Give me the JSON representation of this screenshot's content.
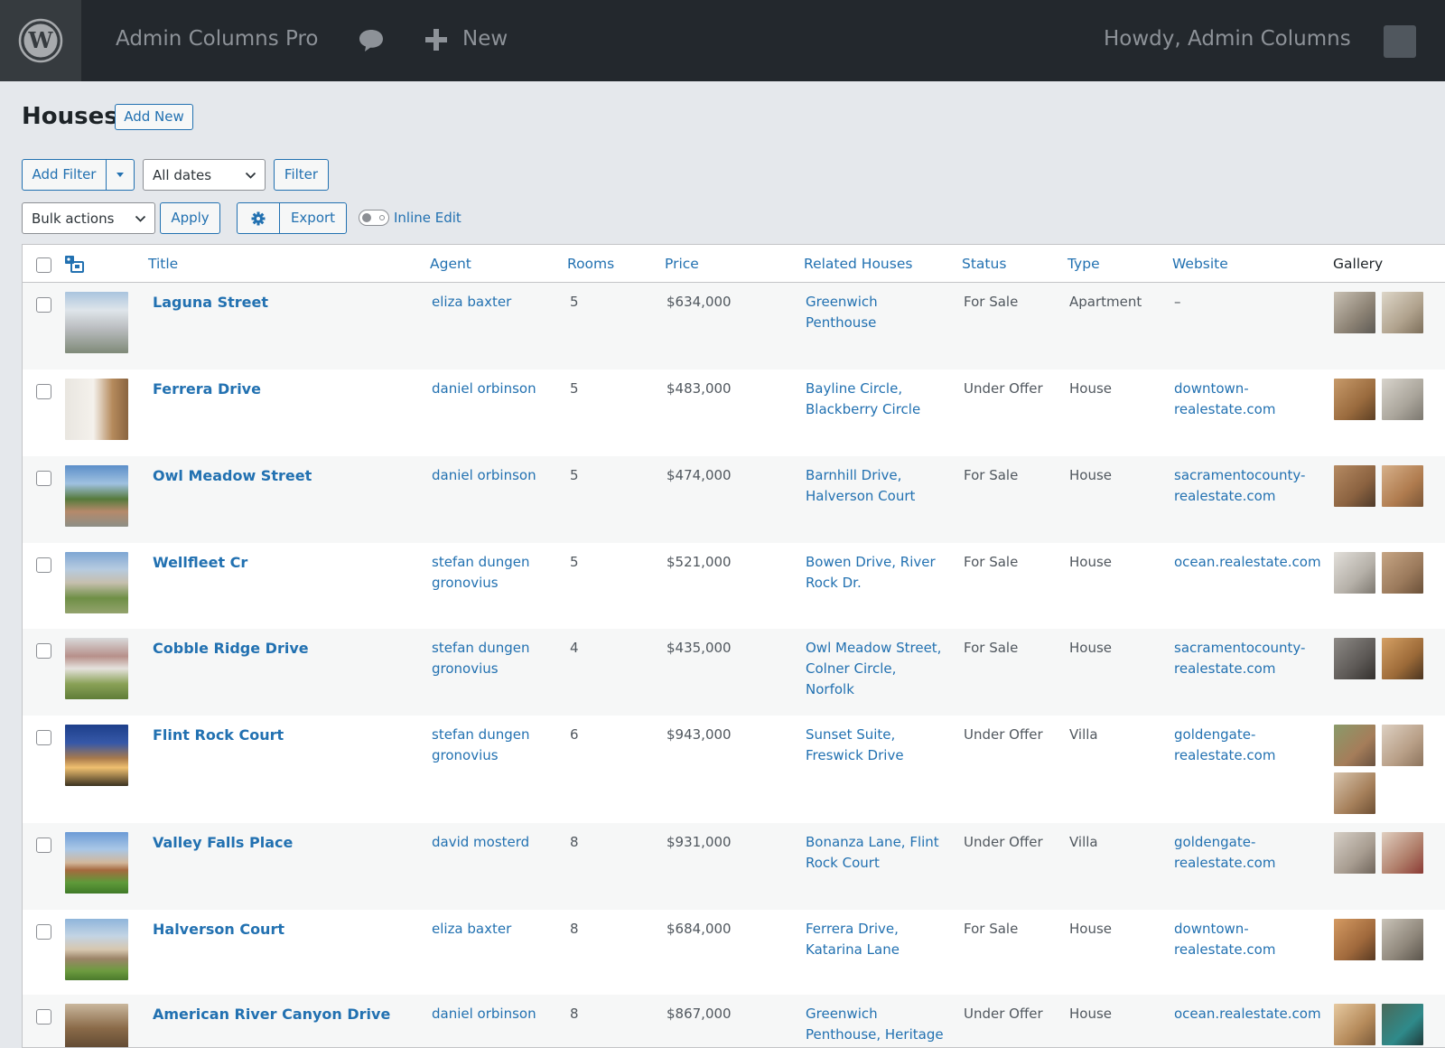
{
  "admin_bar": {
    "site_name": "Admin Columns Pro",
    "new_label": "New",
    "howdy": "Howdy,  Admin Columns"
  },
  "page": {
    "title": "Houses",
    "add_new_label": "Add New"
  },
  "filters": {
    "add_filter_label": "Add Filter",
    "dates_value": "All dates",
    "filter_label": "Filter"
  },
  "actions": {
    "bulk_value": "Bulk actions",
    "apply_label": "Apply",
    "export_label": "Export",
    "inline_edit_label": "Inline Edit"
  },
  "columns": {
    "title": "Title",
    "agent": "Agent",
    "rooms": "Rooms",
    "price": "Price",
    "related": "Related Houses",
    "status": "Status",
    "type": "Type",
    "website": "Website",
    "gallery": "Gallery"
  },
  "rows": [
    {
      "title": "Laguna Street",
      "agent": "eliza baxter",
      "rooms": "5",
      "price": "$634,000",
      "related_1": "Greenwich",
      "related_2": "Penthouse",
      "related_3": "",
      "status": "For Sale",
      "type": "Apartment",
      "website_1": "–",
      "website_2": ""
    },
    {
      "title": "Ferrera Drive",
      "agent": "daniel orbinson",
      "rooms": "5",
      "price": "$483,000",
      "related_1": "Bayline Circle,",
      "related_2": "Blackberry Circle",
      "related_3": "",
      "status": "Under Offer",
      "type": "House",
      "website_1": "downtown-",
      "website_2": "realestate.com"
    },
    {
      "title": "Owl Meadow Street",
      "agent": "daniel orbinson",
      "rooms": "5",
      "price": "$474,000",
      "related_1": "Barnhill Drive,",
      "related_2": "Halverson Court",
      "related_3": "",
      "status": "For Sale",
      "type": "House",
      "website_1": "sacramentocounty-",
      "website_2": "realestate.com"
    },
    {
      "title": "Wellfleet Cr",
      "agent": "stefan dungen",
      "agent_2": "gronovius",
      "rooms": "5",
      "price": "$521,000",
      "related_1": "Bowen Drive, River",
      "related_2": "Rock Dr.",
      "related_3": "",
      "status": "For Sale",
      "type": "House",
      "website_1": "ocean.realestate.com",
      "website_2": ""
    },
    {
      "title": "Cobble Ridge Drive",
      "agent": "stefan dungen",
      "agent_2": "gronovius",
      "rooms": "4",
      "price": "$435,000",
      "related_1": "Owl Meadow Street,",
      "related_2": "Colner Circle,",
      "related_3": "Norfolk",
      "status": "For Sale",
      "type": "House",
      "website_1": "sacramentocounty-",
      "website_2": "realestate.com"
    },
    {
      "title": "Flint Rock Court",
      "agent": "stefan dungen",
      "agent_2": "gronovius",
      "rooms": "6",
      "price": "$943,000",
      "related_1": "Sunset Suite,",
      "related_2": "Freswick Drive",
      "related_3": "",
      "status": "Under Offer",
      "type": "Villa",
      "website_1": "goldengate-",
      "website_2": "realestate.com"
    },
    {
      "title": "Valley Falls Place",
      "agent": "david mosterd",
      "rooms": "8",
      "price": "$931,000",
      "related_1": "Bonanza Lane, Flint",
      "related_2": "Rock Court",
      "related_3": "",
      "status": "Under Offer",
      "type": "Villa",
      "website_1": "goldengate-",
      "website_2": "realestate.com"
    },
    {
      "title": "Halverson Court",
      "agent": "eliza baxter",
      "rooms": "8",
      "price": "$684,000",
      "related_1": "Ferrera Drive,",
      "related_2": "Katarina Lane",
      "related_3": "",
      "status": "For Sale",
      "type": "House",
      "website_1": "downtown-",
      "website_2": "realestate.com"
    },
    {
      "title": "American River Canyon Drive",
      "agent": "daniel orbinson",
      "rooms": "8",
      "price": "$867,000",
      "related_1": "Greenwich",
      "related_2": "Penthouse, Heritage",
      "related_3": "",
      "status": "Under Offer",
      "type": "House",
      "website_1": "ocean.realestate.com",
      "website_2": ""
    }
  ],
  "colors": {
    "link": "#2271b1",
    "admin_bar": "#23282d",
    "background": "#e5e8ec"
  },
  "icons": [
    "wordpress-logo-icon",
    "comment-icon",
    "plus-icon",
    "chevron-down-icon",
    "gear-icon",
    "featured-image-icon"
  ]
}
